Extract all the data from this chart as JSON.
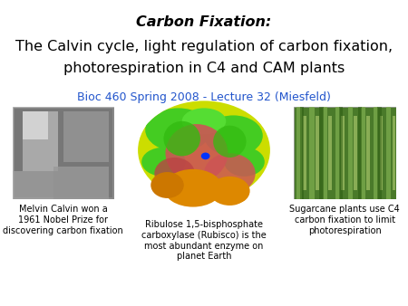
{
  "title_line1": "Carbon Fixation:",
  "title_line2": "The Calvin cycle, light regulation of carbon fixation,",
  "title_line3": "photorespiration in C4 and CAM plants",
  "subtitle": "Bioc 460 Spring 2008 - Lecture 32 (Miesfeld)",
  "subtitle_color": "#2255cc",
  "background_color": "#ffffff",
  "caption1": "Melvin Calvin won a\n1961 Nobel Prize for\ndiscovering carbon fixation",
  "caption2": "Ribulose 1,5-bisphosphate\ncarboxylase (Rubisco) is the\nmost abundant enzyme on\nplanet Earth",
  "caption3": "Sugarcane plants use C4\ncarbon fixation to limit\nphotorespiration",
  "title_fontsize": 11.5,
  "subtitle_fontsize": 9,
  "caption_fontsize": 7
}
